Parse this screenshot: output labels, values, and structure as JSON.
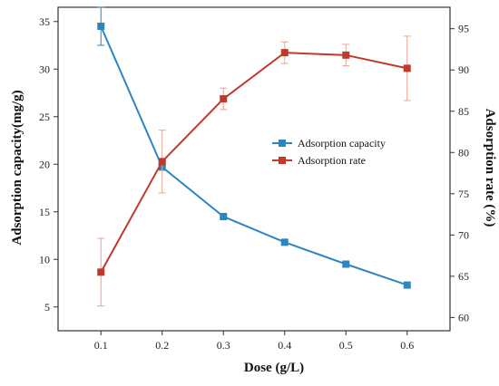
{
  "chart_data": {
    "type": "line",
    "x": [
      0.1,
      0.2,
      0.3,
      0.4,
      0.5,
      0.6
    ],
    "x_ticks": [
      "0.1",
      "0.2",
      "0.3",
      "0.4",
      "0.5",
      "0.6"
    ],
    "xlim": [
      0.03,
      0.67
    ],
    "xlabel": "Dose (g/L)",
    "ylabel_left": "Adsorption capacity(mg/g)",
    "ylabel_right": "Adsorption rate (%)",
    "ylim_left": [
      2.5,
      36.5
    ],
    "ylim_right": [
      58.4,
      97.6
    ],
    "yticks_left": [
      5,
      10,
      15,
      20,
      25,
      30,
      35
    ],
    "yticks_right": [
      60,
      65,
      70,
      75,
      80,
      85,
      90,
      95
    ],
    "legend_position": "center-right",
    "grid": false,
    "series": [
      {
        "name": "Adsorption capacity",
        "axis": "left",
        "color": "#2e86c1",
        "marker": "square",
        "values": [
          34.5,
          19.7,
          14.5,
          11.8,
          9.5,
          7.3
        ],
        "error": [
          2.0,
          0.0,
          0.0,
          0.0,
          0.0,
          0.0
        ]
      },
      {
        "name": "Adsorption rate",
        "axis": "right",
        "color": "#c0392b",
        "error_color": "#eba28e",
        "marker": "square",
        "values": [
          65.5,
          78.9,
          86.5,
          92.1,
          91.8,
          90.2
        ],
        "error": [
          4.1,
          3.8,
          1.3,
          1.3,
          1.3,
          3.9
        ]
      }
    ]
  }
}
